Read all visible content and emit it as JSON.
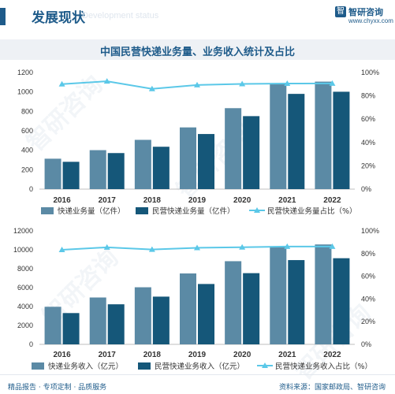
{
  "header": {
    "title": "发展现状",
    "watermark": "Development status",
    "logo_name": "智研咨询",
    "logo_url": "www.chyxx.com",
    "logo_mark": "智"
  },
  "main_title": "中国民营快递业务量、业务收入统计及占比",
  "watermark_text": "智研咨询",
  "footer": {
    "left": "精品报告 · 专项定制 · 品质服务",
    "right": "资料来源：国家邮政局、智研咨询"
  },
  "colors": {
    "bar_total": "#5b8aa5",
    "bar_private": "#155779",
    "line": "#5bc8e8",
    "axis_text": "#333333"
  },
  "chart_data": [
    {
      "type": "bar",
      "categories": [
        "2016",
        "2017",
        "2018",
        "2019",
        "2020",
        "2021",
        "2022"
      ],
      "series": [
        {
          "name": "快递业务量（亿件）",
          "values": [
            313,
            401,
            507,
            635,
            833,
            1083,
            1106
          ]
        },
        {
          "name": "民营快递业务量（亿件）",
          "values": [
            281,
            371,
            436,
            567,
            751,
            980,
            1002
          ]
        }
      ],
      "line_series": {
        "name": "民营快递业务量占比（%）",
        "values": [
          90,
          92.5,
          86,
          89.3,
          90.2,
          90.5,
          90.6
        ]
      },
      "y_ticks": [
        "0",
        "200",
        "400",
        "600",
        "800",
        "1000",
        "1200"
      ],
      "y2_ticks": [
        "0%",
        "20%",
        "40%",
        "60%",
        "80%",
        "100%"
      ],
      "ylim": [
        0,
        1200
      ],
      "y2lim": [
        0,
        100
      ],
      "grid": false,
      "legend_position": "bottom"
    },
    {
      "type": "bar",
      "categories": [
        "2016",
        "2017",
        "2018",
        "2019",
        "2020",
        "2021",
        "2022"
      ],
      "series": [
        {
          "name": "快递业务收入（亿元）",
          "values": [
            3974,
            4957,
            6038,
            7498,
            8795,
            10332,
            10566
          ]
        },
        {
          "name": "民营快递业务收入（亿元）",
          "values": [
            3309,
            4237,
            5048,
            6384,
            7530,
            8911,
            9110
          ]
        }
      ],
      "line_series": {
        "name": "民营快递业务收入占比（%）",
        "values": [
          83.3,
          85.5,
          83.6,
          85.1,
          85.6,
          86.2,
          86.2
        ]
      },
      "y_ticks": [
        "0",
        "2000",
        "4000",
        "6000",
        "8000",
        "10000",
        "12000"
      ],
      "y2_ticks": [
        "0%",
        "20%",
        "40%",
        "60%",
        "80%",
        "100%"
      ],
      "ylim": [
        0,
        12000
      ],
      "y2lim": [
        0,
        100
      ],
      "grid": false,
      "legend_position": "bottom"
    }
  ]
}
